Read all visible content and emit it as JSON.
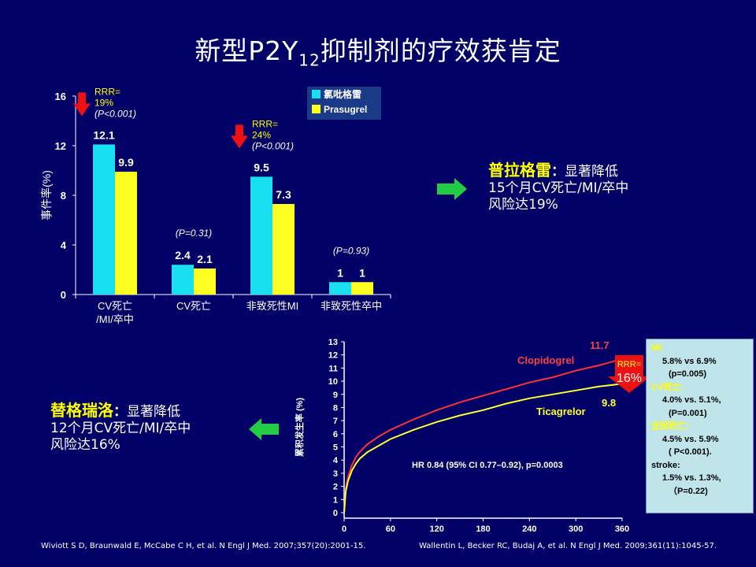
{
  "slide": {
    "title_main": "新型P2Y",
    "title_sub": "12",
    "title_end": "抑制剂的疗效获肯定"
  },
  "prasugrel_text": {
    "name": "普拉格雷",
    "colon": "：",
    "line1": "显著降低",
    "line2": "15个月CV死亡/MI/卒中",
    "line3": "风险达19%"
  },
  "ticagrelor_text": {
    "name": "替格瑞洛",
    "colon": "：",
    "line1": "显著降低",
    "line2": "12个月CV死亡/MI/卒中",
    "line3": "风险达16%"
  },
  "citations": {
    "left": "Wiviott S D, Braunwald E, McCabe C H, et al. N Engl J Med. 2007;357(20):2001-15.",
    "right": "Wallentin L, Becker RC, Budaj A, et al. N Engl J Med. 2009;361(11):1045-57."
  },
  "colors": {
    "background": "#000066",
    "clopidogrel_bar": "#19e0f0",
    "prasugrel_bar": "#ffff22",
    "clopidogrel_line": "#ff3333",
    "ticagrelor_line": "#ffff33",
    "arrow_red": "#ee1111",
    "arrow_green": "#22cc44"
  },
  "chart_data": [
    {
      "type": "bar",
      "ylabel": "事件率(%)",
      "ylim": [
        0,
        16
      ],
      "yticks": [
        "0",
        "4",
        "8",
        "12",
        "16"
      ],
      "categories": [
        "CV死亡\n/MI/卒中",
        "CV死亡",
        "非致死性MI",
        "非致死性卒中"
      ],
      "series": [
        {
          "name": "氯吡格雷",
          "values": [
            12.1,
            2.4,
            9.5,
            1
          ]
        },
        {
          "name": "Prasugrel",
          "values": [
            9.9,
            2.1,
            7.3,
            1
          ]
        }
      ],
      "value_labels": {
        "氯吡格雷": [
          "12.1",
          "2.4",
          "9.5",
          "1"
        ],
        "Prasugrel": [
          "9.9",
          "2.1",
          "7.3",
          "1"
        ]
      },
      "legend_position": "top-right",
      "annotations": [
        {
          "category": 0,
          "rrr": "RRR=",
          "rrr_val": "19%",
          "p": "(P<0.001)",
          "arrow": true
        },
        {
          "category": 1,
          "p": "(P=0.31)"
        },
        {
          "category": 2,
          "rrr": "RRR=",
          "rrr_val": "24%",
          "p": "(P<0.001)",
          "arrow": true
        },
        {
          "category": 3,
          "p": "(P=0.93)"
        }
      ]
    },
    {
      "type": "line",
      "ylabel": "累积发生率 (%)",
      "xlim": [
        0,
        360
      ],
      "ylim": [
        0,
        13
      ],
      "xticks": [
        0,
        60,
        120,
        180,
        240,
        300,
        360
      ],
      "yticks": [
        0,
        1,
        2,
        3,
        4,
        5,
        6,
        7,
        8,
        9,
        10,
        11,
        12,
        13
      ],
      "series": [
        {
          "name": "Clopidogrel",
          "end_label": "11.7",
          "x": [
            0,
            2,
            5,
            10,
            15,
            20,
            30,
            45,
            60,
            90,
            120,
            150,
            180,
            210,
            240,
            270,
            300,
            330,
            360
          ],
          "y": [
            0,
            1.8,
            2.7,
            3.6,
            4.2,
            4.6,
            5.2,
            5.8,
            6.3,
            7.1,
            7.8,
            8.4,
            8.9,
            9.4,
            9.9,
            10.3,
            10.8,
            11.2,
            11.7
          ]
        },
        {
          "name": "Ticagrelor",
          "end_label": "9.8",
          "x": [
            0,
            2,
            5,
            10,
            15,
            20,
            30,
            45,
            60,
            90,
            120,
            150,
            180,
            210,
            240,
            270,
            300,
            330,
            360
          ],
          "y": [
            0,
            1.6,
            2.4,
            3.2,
            3.7,
            4.1,
            4.6,
            5.1,
            5.6,
            6.3,
            6.9,
            7.4,
            7.8,
            8.3,
            8.7,
            9.0,
            9.3,
            9.6,
            9.8
          ]
        }
      ],
      "annotation": "HR 0.84 (95%  CI 0.77–0.92), p=0.0003",
      "rrr_label": "RRR=",
      "rrr_value": "16%"
    }
  ],
  "info_box": {
    "mi_key": "MI:",
    "mi_val": "5.8% vs 6.9%",
    "mi_p": "(p=0.005)",
    "cv_key": "CV死亡:",
    "cv_val": "4.0% vs. 5.1%,",
    "cv_p": "(P=0.001)",
    "all_key": "全因死亡:",
    "all_val": "4.5%  vs. 5.9%",
    "all_p": "( P<0.001).",
    "stroke_key": "stroke:",
    "stroke_val": "1.5%  vs. 1.3%,",
    "stroke_p": "（P=0.22)"
  }
}
